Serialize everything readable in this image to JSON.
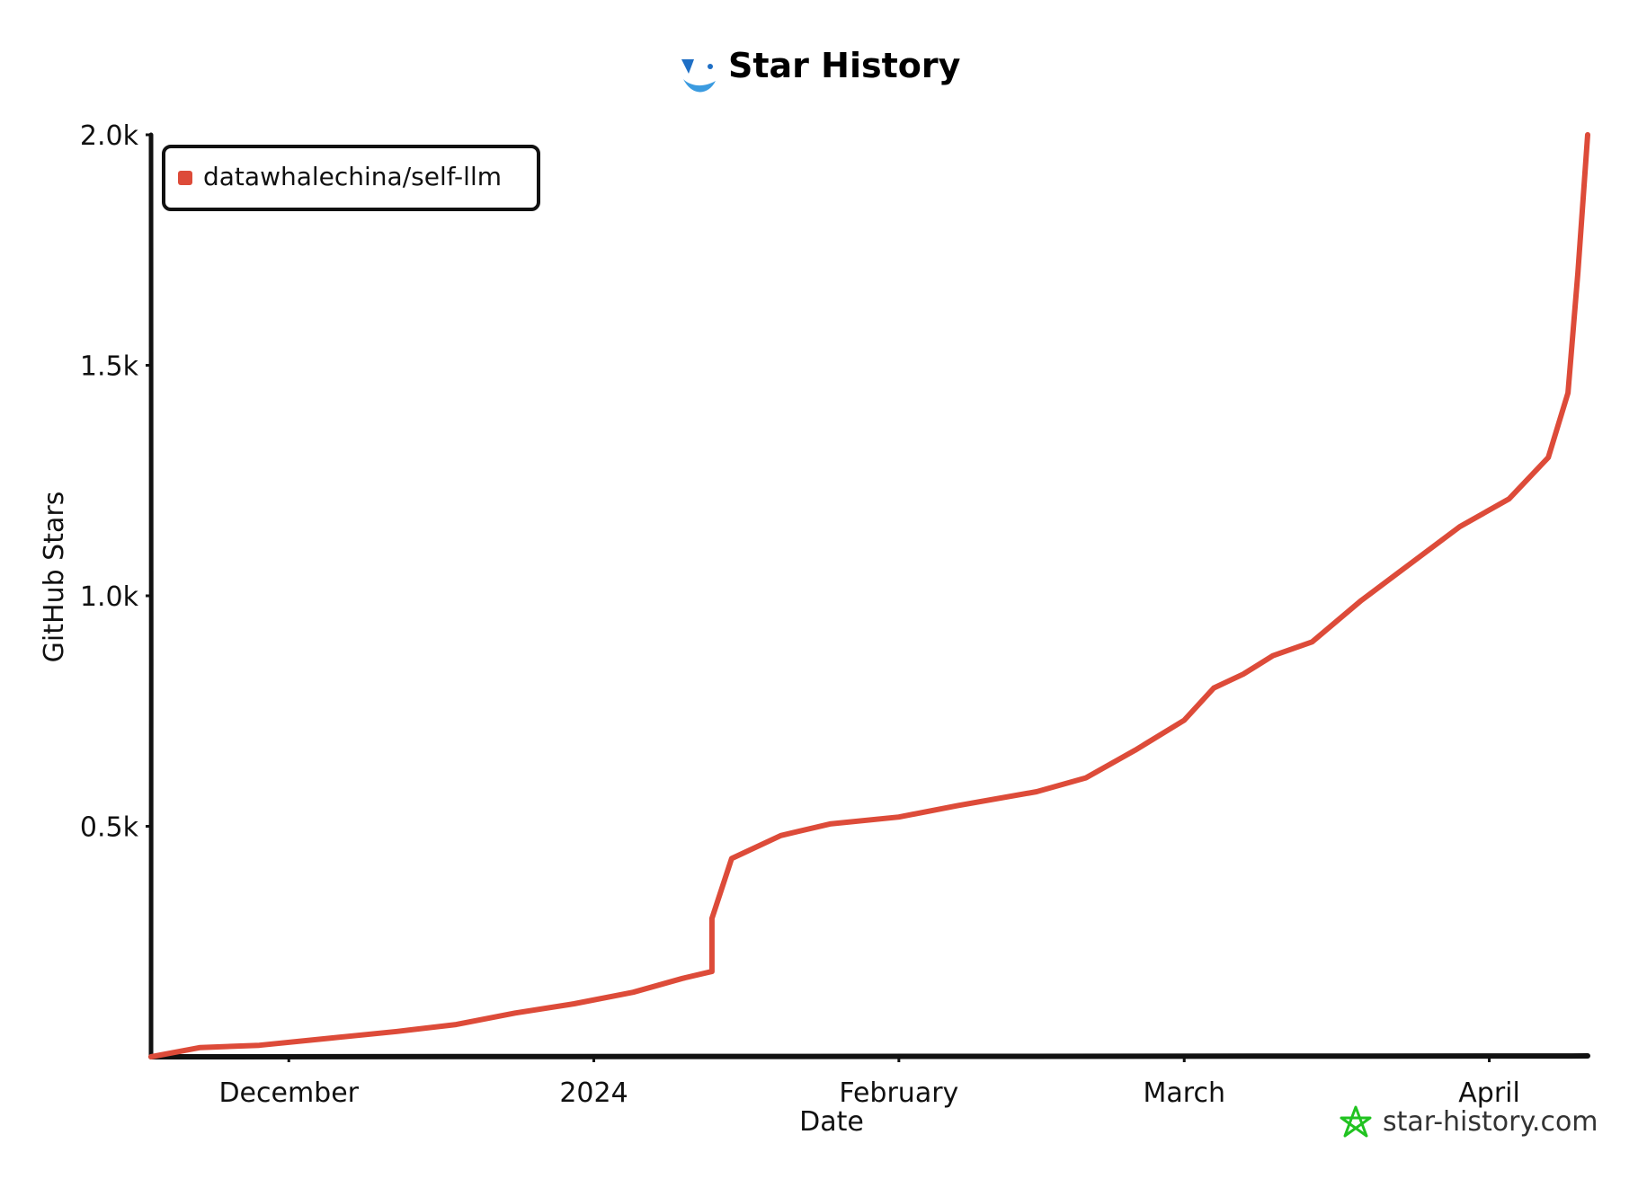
{
  "title": "Star History",
  "watermark": "star-history.com",
  "colors": {
    "series": "#dd4b39",
    "axis": "#111111",
    "watermark_star": "#21c321",
    "logo_primary": "#3b9be0",
    "logo_accent": "#1f6fc5"
  },
  "chart_data": {
    "type": "line",
    "title": "Star History",
    "xlabel": "Date",
    "ylabel": "GitHub Stars",
    "xlim": [
      "2023-11-17",
      "2024-04-11"
    ],
    "ylim": [
      0,
      2000
    ],
    "x_ticks": [
      {
        "label": "December",
        "date": "2023-12-01"
      },
      {
        "label": "2024",
        "date": "2024-01-01"
      },
      {
        "label": "February",
        "date": "2024-02-01"
      },
      {
        "label": "March",
        "date": "2024-03-01"
      },
      {
        "label": "April",
        "date": "2024-04-01"
      }
    ],
    "y_ticks": [
      {
        "label": "0.5k",
        "value": 500
      },
      {
        "label": "1.0k",
        "value": 1000
      },
      {
        "label": "1.5k",
        "value": 1500
      },
      {
        "label": "2.0k",
        "value": 2000
      }
    ],
    "legend_position": "top-left",
    "grid": false,
    "series": [
      {
        "name": "datawhalechina/self-llm",
        "color": "#dd4b39",
        "points": [
          {
            "date": "2023-11-17",
            "stars": 0
          },
          {
            "date": "2023-11-22",
            "stars": 20
          },
          {
            "date": "2023-11-28",
            "stars": 25
          },
          {
            "date": "2023-12-05",
            "stars": 40
          },
          {
            "date": "2023-12-12",
            "stars": 55
          },
          {
            "date": "2023-12-18",
            "stars": 70
          },
          {
            "date": "2023-12-24",
            "stars": 95
          },
          {
            "date": "2023-12-30",
            "stars": 115
          },
          {
            "date": "2024-01-05",
            "stars": 140
          },
          {
            "date": "2024-01-10",
            "stars": 170
          },
          {
            "date": "2024-01-13",
            "stars": 185
          },
          {
            "date": "2024-01-13",
            "stars": 300
          },
          {
            "date": "2024-01-15",
            "stars": 430
          },
          {
            "date": "2024-01-20",
            "stars": 480
          },
          {
            "date": "2024-01-25",
            "stars": 505
          },
          {
            "date": "2024-02-01",
            "stars": 520
          },
          {
            "date": "2024-02-07",
            "stars": 545
          },
          {
            "date": "2024-02-15",
            "stars": 575
          },
          {
            "date": "2024-02-20",
            "stars": 605
          },
          {
            "date": "2024-02-25",
            "stars": 665
          },
          {
            "date": "2024-03-01",
            "stars": 730
          },
          {
            "date": "2024-03-04",
            "stars": 800
          },
          {
            "date": "2024-03-07",
            "stars": 830
          },
          {
            "date": "2024-03-10",
            "stars": 870
          },
          {
            "date": "2024-03-14",
            "stars": 900
          },
          {
            "date": "2024-03-19",
            "stars": 990
          },
          {
            "date": "2024-03-24",
            "stars": 1070
          },
          {
            "date": "2024-03-29",
            "stars": 1150
          },
          {
            "date": "2024-04-03",
            "stars": 1210
          },
          {
            "date": "2024-04-07",
            "stars": 1300
          },
          {
            "date": "2024-04-09",
            "stars": 1440
          },
          {
            "date": "2024-04-10",
            "stars": 1700
          },
          {
            "date": "2024-04-11",
            "stars": 2000
          }
        ]
      }
    ]
  }
}
